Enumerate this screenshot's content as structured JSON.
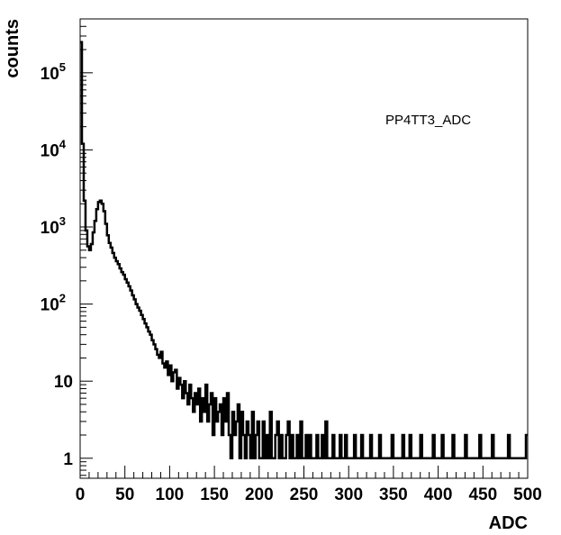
{
  "chart_data": {
    "type": "histogram",
    "title": "",
    "hist_label": "PP4TT3_ADC",
    "xlabel": "ADC",
    "ylabel": "counts",
    "xlim": [
      0,
      500
    ],
    "ylim": [
      0.55,
      500000
    ],
    "log_y": true,
    "grid": false,
    "x_ticks": [
      "0",
      "50",
      "100",
      "150",
      "200",
      "250",
      "300",
      "350",
      "400",
      "450",
      "500"
    ],
    "y_ticks": [
      {
        "base": "1",
        "exp": ""
      },
      {
        "base": "10",
        "exp": ""
      },
      {
        "base": "10",
        "exp": "2"
      },
      {
        "base": "10",
        "exp": "3"
      },
      {
        "base": "10",
        "exp": "4"
      },
      {
        "base": "10",
        "exp": "5"
      }
    ],
    "bin_width": 2,
    "bins_x": [
      0,
      2,
      4,
      6,
      8,
      10,
      12,
      14,
      16,
      18,
      20,
      22,
      24,
      26,
      28,
      30,
      32,
      34,
      36,
      38,
      40,
      42,
      44,
      46,
      48,
      50,
      52,
      54,
      56,
      58,
      60,
      62,
      64,
      66,
      68,
      70,
      72,
      74,
      76,
      78,
      80,
      82,
      84,
      86,
      88,
      90,
      92,
      94,
      96,
      98,
      100,
      102,
      104,
      106,
      108,
      110,
      112,
      114,
      116,
      118,
      120,
      122,
      124,
      126,
      128,
      130,
      132,
      134,
      136,
      138,
      140,
      142,
      144,
      146,
      148,
      150,
      152,
      154,
      156,
      158,
      160,
      162,
      164,
      166,
      168,
      170,
      172,
      174,
      176,
      178,
      180,
      182,
      184,
      186,
      188,
      190,
      192,
      194,
      196,
      198,
      200,
      202,
      204,
      206,
      208,
      210,
      212,
      214,
      216,
      218,
      220,
      222,
      224,
      226,
      228,
      230,
      232,
      234,
      236,
      238,
      240,
      242,
      244,
      246,
      248,
      250,
      252,
      254,
      256,
      258,
      260,
      262,
      264,
      266,
      268,
      270,
      272,
      274,
      276,
      278,
      280,
      282,
      284,
      286,
      288,
      290,
      292,
      294,
      296,
      298,
      300,
      302,
      304,
      306,
      308,
      310,
      312,
      314,
      316,
      318,
      320,
      322,
      324,
      326,
      328,
      330,
      332,
      334,
      336,
      338,
      340,
      342,
      344,
      346,
      348,
      350,
      352,
      354,
      356,
      358,
      360,
      362,
      364,
      366,
      368,
      370,
      372,
      374,
      376,
      378,
      380,
      382,
      384,
      386,
      388,
      390,
      392,
      394,
      396,
      398,
      400,
      402,
      404,
      406,
      408,
      410,
      412,
      414,
      416,
      418,
      420,
      422,
      424,
      426,
      428,
      430,
      432,
      434,
      436,
      438,
      440,
      442,
      444,
      446,
      448,
      450,
      452,
      454,
      456,
      458,
      460,
      462,
      464,
      466,
      468,
      470,
      472,
      474,
      476,
      478,
      480,
      482,
      484,
      486,
      488,
      490,
      492,
      494,
      496,
      498
    ],
    "counts": [
      250000,
      12000,
      2200,
      900,
      560,
      500,
      600,
      850,
      1200,
      1700,
      2100,
      2200,
      2000,
      1600,
      1100,
      780,
      620,
      540,
      460,
      400,
      360,
      330,
      290,
      260,
      240,
      210,
      190,
      170,
      150,
      130,
      115,
      100,
      90,
      82,
      72,
      64,
      56,
      50,
      44,
      40,
      34,
      30,
      26,
      22,
      20,
      24,
      17,
      15,
      18,
      12,
      16,
      10,
      13,
      14,
      8,
      11,
      9,
      6,
      10,
      7,
      5,
      9,
      6,
      4,
      7,
      5,
      8,
      3,
      6,
      4,
      9,
      3,
      5,
      7,
      2,
      6,
      3,
      4,
      5,
      2,
      6,
      3,
      7,
      2,
      1,
      4,
      2,
      3,
      5,
      1,
      4,
      2,
      1,
      3,
      2,
      1,
      4,
      1,
      2,
      3,
      1,
      1,
      3,
      1,
      2,
      1,
      4,
      1,
      1,
      2,
      3,
      1,
      2,
      1,
      1,
      2,
      3,
      1,
      2,
      1,
      1,
      2,
      1,
      3,
      1,
      1,
      2,
      1,
      2,
      1,
      1,
      1,
      2,
      1,
      1,
      2,
      1,
      3,
      1,
      1,
      1,
      2,
      1,
      1,
      1,
      2,
      1,
      1,
      2,
      1,
      1,
      1,
      1,
      2,
      1,
      1,
      1,
      2,
      1,
      1,
      1,
      1,
      2,
      1,
      1,
      1,
      1,
      2,
      1,
      1,
      1,
      1,
      1,
      1,
      2,
      1,
      1,
      1,
      1,
      1,
      2,
      1,
      1,
      1,
      2,
      1,
      1,
      1,
      1,
      1,
      2,
      1,
      1,
      1,
      1,
      1,
      1,
      2,
      1,
      1,
      1,
      1,
      2,
      1,
      1,
      1,
      1,
      1,
      2,
      1,
      1,
      1,
      1,
      1,
      1,
      2,
      1,
      1,
      1,
      1,
      1,
      1,
      1,
      2,
      1,
      1,
      1,
      1,
      1,
      1,
      2,
      1,
      1,
      1,
      1,
      1,
      1,
      1,
      1,
      2,
      1,
      1,
      1,
      1,
      1,
      1,
      1,
      1,
      1,
      2
    ]
  }
}
